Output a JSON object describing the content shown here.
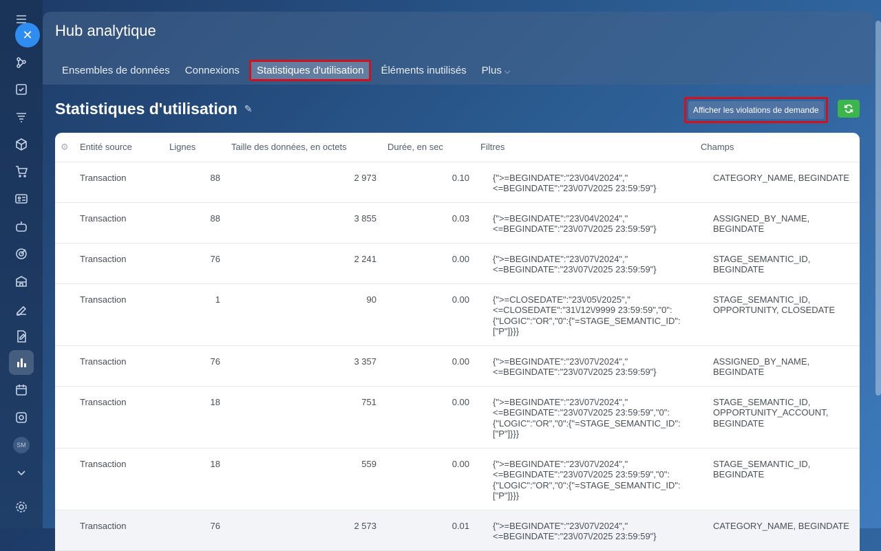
{
  "header": {
    "title": "Hub analytique",
    "tabs": [
      {
        "label": "Ensembles de données"
      },
      {
        "label": "Connexions"
      },
      {
        "label": "Statistiques d'utilisation"
      },
      {
        "label": "Éléments inutilisés"
      },
      {
        "label": "Plus"
      }
    ]
  },
  "page": {
    "title": "Statistiques d'utilisation",
    "violations_label": "Afficher les violations de demande"
  },
  "rail": {
    "avatar_initials": "SM",
    "icons": [
      "menu-icon",
      "close-icon",
      "sitemap-icon",
      "checkbox-icon",
      "filter-icon",
      "cube-icon",
      "cart-icon",
      "contact-card-icon",
      "robot-icon",
      "target-icon",
      "building-icon",
      "sign-icon",
      "document-edit-icon",
      "analytics-icon",
      "calendar-icon",
      "disk-icon",
      "avatar",
      "chevron-down-icon",
      "gear-icon"
    ]
  },
  "table": {
    "columns": [
      "Entité source",
      "Lignes",
      "Taille des données, en octets",
      "Durée, en sec",
      "Filtres",
      "Champs"
    ],
    "rows": [
      {
        "entity": "Transaction",
        "rows": "88",
        "size": "2 973",
        "duration": "0.10",
        "filter": "{\">=BEGINDATE\":\"23\\/04\\/2024\",\"<=BEGINDATE\":\"23\\/07\\/2025 23:59:59\"}",
        "fields": "CATEGORY_NAME, BEGINDATE"
      },
      {
        "entity": "Transaction",
        "rows": "88",
        "size": "3 855",
        "duration": "0.03",
        "filter": "{\">=BEGINDATE\":\"23\\/04\\/2024\",\"<=BEGINDATE\":\"23\\/07\\/2025 23:59:59\"}",
        "fields": "ASSIGNED_BY_NAME, BEGINDATE"
      },
      {
        "entity": "Transaction",
        "rows": "76",
        "size": "2 241",
        "duration": "0.00",
        "filter": "{\">=BEGINDATE\":\"23\\/07\\/2024\",\"<=BEGINDATE\":\"23\\/07\\/2025 23:59:59\"}",
        "fields": "STAGE_SEMANTIC_ID, BEGINDATE"
      },
      {
        "entity": "Transaction",
        "rows": "1",
        "size": "90",
        "duration": "0.00",
        "filter": "{\">=CLOSEDATE\":\"23\\/05\\/2025\",\"<=CLOSEDATE\":\"31\\/12\\/9999 23:59:59\",\"0\":{\"LOGIC\":\"OR\",\"0\":{\"=STAGE_SEMANTIC_ID\":[\"P\"]}}}",
        "fields": "STAGE_SEMANTIC_ID, OPPORTUNITY, CLOSEDATE"
      },
      {
        "entity": "Transaction",
        "rows": "76",
        "size": "3 357",
        "duration": "0.00",
        "filter": "{\">=BEGINDATE\":\"23\\/07\\/2024\",\"<=BEGINDATE\":\"23\\/07\\/2025 23:59:59\"}",
        "fields": "ASSIGNED_BY_NAME, BEGINDATE"
      },
      {
        "entity": "Transaction",
        "rows": "18",
        "size": "751",
        "duration": "0.00",
        "filter": "{\">=BEGINDATE\":\"23\\/07\\/2024\",\"<=BEGINDATE\":\"23\\/07\\/2025 23:59:59\",\"0\":{\"LOGIC\":\"OR\",\"0\":{\"=STAGE_SEMANTIC_ID\":[\"P\"]}}}",
        "fields": "STAGE_SEMANTIC_ID, OPPORTUNITY_ACCOUNT, BEGINDATE"
      },
      {
        "entity": "Transaction",
        "rows": "18",
        "size": "559",
        "duration": "0.00",
        "filter": "{\">=BEGINDATE\":\"23\\/07\\/2024\",\"<=BEGINDATE\":\"23\\/07\\/2025 23:59:59\",\"0\":{\"LOGIC\":\"OR\",\"0\":{\"=STAGE_SEMANTIC_ID\":[\"P\"]}}}",
        "fields": "STAGE_SEMANTIC_ID, BEGINDATE"
      },
      {
        "entity": "Transaction",
        "rows": "76",
        "size": "2 573",
        "duration": "0.01",
        "filter": "{\">=BEGINDATE\":\"23\\/07\\/2024\",\"<=BEGINDATE\":\"23\\/07\\/2025 23:59:59\"}",
        "fields": "CATEGORY_NAME, BEGINDATE"
      }
    ]
  }
}
